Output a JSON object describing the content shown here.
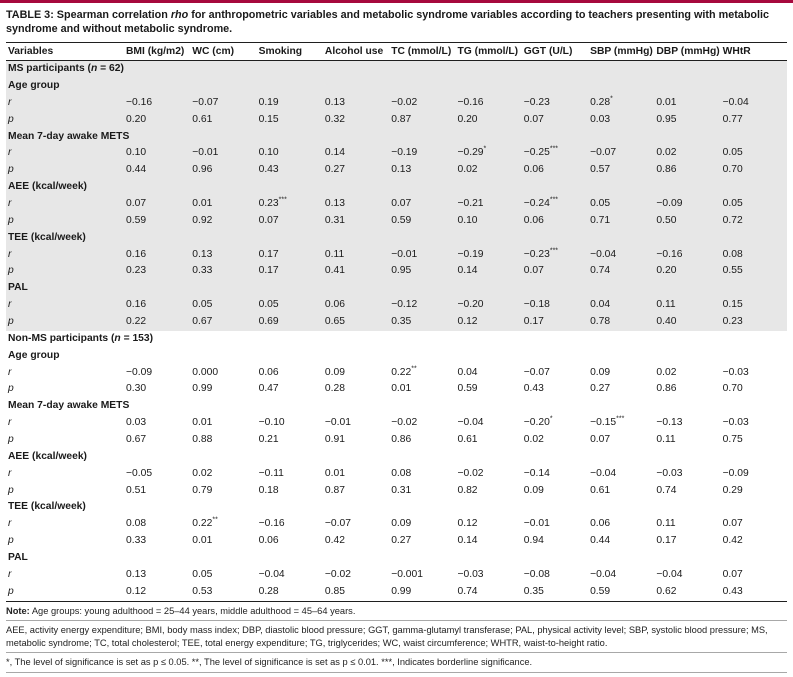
{
  "colors": {
    "accent": "#a6093d",
    "section_shade": "#e7e7e7"
  },
  "caption": {
    "prefix": "TABLE 3:",
    "before_italic": " Spearman correlation ",
    "italic": "rho",
    "after_italic": " for anthropometric variables and metabolic syndrome variables according to teachers presenting with metabolic syndrome and without metabolic syndrome."
  },
  "table": {
    "columns": [
      "Variables",
      "BMI (kg/m2)",
      "WC (cm)",
      "Smoking",
      "Alcohol use",
      "TC (mmol/L)",
      "TG (mmol/L)",
      "GGT (U/L)",
      "SBP (mmHg)",
      "DBP (mmHg)",
      "WHtR"
    ],
    "rows": [
      {
        "type": "section",
        "pre": "MS participants (",
        "sym": "n",
        "post": " = 62)",
        "shaded": true
      },
      {
        "type": "sub",
        "label": "Age group",
        "shaded": true
      },
      {
        "type": "data",
        "sym": "r",
        "shaded": true,
        "values": [
          "−0.16",
          "−0.07",
          "0.19",
          "0.13",
          "−0.02",
          "−0.16",
          "−0.23",
          "0.28*",
          "0.01",
          "−0.04"
        ]
      },
      {
        "type": "data",
        "sym": "p",
        "shaded": true,
        "values": [
          "0.20",
          "0.61",
          "0.15",
          "0.32",
          "0.87",
          "0.20",
          "0.07",
          "0.03",
          "0.95",
          "0.77"
        ]
      },
      {
        "type": "sub",
        "label": "Mean 7-day awake METS",
        "shaded": true
      },
      {
        "type": "data",
        "sym": "r",
        "shaded": true,
        "values": [
          "0.10",
          "−0.01",
          "0.10",
          "0.14",
          "−0.19",
          "−0.29*",
          "−0.25***",
          "−0.07",
          "0.02",
          "0.05"
        ]
      },
      {
        "type": "data",
        "sym": "p",
        "shaded": true,
        "values": [
          "0.44",
          "0.96",
          "0.43",
          "0.27",
          "0.13",
          "0.02",
          "0.06",
          "0.57",
          "0.86",
          "0.70"
        ]
      },
      {
        "type": "sub",
        "label": "AEE (kcal/week)",
        "shaded": true
      },
      {
        "type": "data",
        "sym": "r",
        "shaded": true,
        "values": [
          "0.07",
          "0.01",
          "0.23***",
          "0.13",
          "0.07",
          "−0.21",
          "−0.24***",
          "0.05",
          "−0.09",
          "0.05"
        ]
      },
      {
        "type": "data",
        "sym": "p",
        "shaded": true,
        "values": [
          "0.59",
          "0.92",
          "0.07",
          "0.31",
          "0.59",
          "0.10",
          "0.06",
          "0.71",
          "0.50",
          "0.72"
        ]
      },
      {
        "type": "sub",
        "label": "TEE (kcal/week)",
        "shaded": true
      },
      {
        "type": "data",
        "sym": "r",
        "shaded": true,
        "values": [
          "0.16",
          "0.13",
          "0.17",
          "0.11",
          "−0.01",
          "−0.19",
          "−0.23***",
          "−0.04",
          "−0.16",
          "0.08"
        ]
      },
      {
        "type": "data",
        "sym": "p",
        "shaded": true,
        "values": [
          "0.23",
          "0.33",
          "0.17",
          "0.41",
          "0.95",
          "0.14",
          "0.07",
          "0.74",
          "0.20",
          "0.55"
        ]
      },
      {
        "type": "sub",
        "label": "PAL",
        "shaded": true
      },
      {
        "type": "data",
        "sym": "r",
        "shaded": true,
        "values": [
          "0.16",
          "0.05",
          "0.05",
          "0.06",
          "−0.12",
          "−0.20",
          "−0.18",
          "0.04",
          "0.11",
          "0.15"
        ]
      },
      {
        "type": "data",
        "sym": "p",
        "shaded": true,
        "values": [
          "0.22",
          "0.67",
          "0.69",
          "0.65",
          "0.35",
          "0.12",
          "0.17",
          "0.78",
          "0.40",
          "0.23"
        ]
      },
      {
        "type": "section",
        "pre": "Non-MS participants (",
        "sym": "n",
        "post": " = 153)",
        "shaded": false
      },
      {
        "type": "sub",
        "label": "Age group",
        "shaded": false
      },
      {
        "type": "data",
        "sym": "r",
        "shaded": false,
        "values": [
          "−0.09",
          "0.000",
          "0.06",
          "0.09",
          "0.22**",
          "0.04",
          "−0.07",
          "0.09",
          "0.02",
          "−0.03"
        ]
      },
      {
        "type": "data",
        "sym": "p",
        "shaded": false,
        "values": [
          "0.30",
          "0.99",
          "0.47",
          "0.28",
          "0.01",
          "0.59",
          "0.43",
          "0.27",
          "0.86",
          "0.70"
        ]
      },
      {
        "type": "sub",
        "label": "Mean 7-day awake METS",
        "shaded": false
      },
      {
        "type": "data",
        "sym": "r",
        "shaded": false,
        "values": [
          "0.03",
          "0.01",
          "−0.10",
          "−0.01",
          "−0.02",
          "−0.04",
          "−0.20*",
          "−0.15***",
          "−0.13",
          "−0.03"
        ]
      },
      {
        "type": "data",
        "sym": "p",
        "shaded": false,
        "values": [
          "0.67",
          "0.88",
          "0.21",
          "0.91",
          "0.86",
          "0.61",
          "0.02",
          "0.07",
          "0.11",
          "0.75"
        ]
      },
      {
        "type": "sub",
        "label": "AEE (kcal/week)",
        "shaded": false
      },
      {
        "type": "data",
        "sym": "r",
        "shaded": false,
        "values": [
          "−0.05",
          "0.02",
          "−0.11",
          "0.01",
          "0.08",
          "−0.02",
          "−0.14",
          "−0.04",
          "−0.03",
          "−0.09"
        ]
      },
      {
        "type": "data",
        "sym": "p",
        "shaded": false,
        "values": [
          "0.51",
          "0.79",
          "0.18",
          "0.87",
          "0.31",
          "0.82",
          "0.09",
          "0.61",
          "0.74",
          "0.29"
        ]
      },
      {
        "type": "sub",
        "label": "TEE (kcal/week)",
        "shaded": false
      },
      {
        "type": "data",
        "sym": "r",
        "shaded": false,
        "values": [
          "0.08",
          "0.22**",
          "−0.16",
          "−0.07",
          "0.09",
          "0.12",
          "−0.01",
          "0.06",
          "0.11",
          "0.07"
        ]
      },
      {
        "type": "data",
        "sym": "p",
        "shaded": false,
        "values": [
          "0.33",
          "0.01",
          "0.06",
          "0.42",
          "0.27",
          "0.14",
          "0.94",
          "0.44",
          "0.17",
          "0.42"
        ]
      },
      {
        "type": "sub",
        "label": "PAL",
        "shaded": false
      },
      {
        "type": "data",
        "sym": "r",
        "shaded": false,
        "values": [
          "0.13",
          "0.05",
          "−0.04",
          "−0.02",
          "−0.001",
          "−0.03",
          "−0.08",
          "−0.04",
          "−0.04",
          "0.07"
        ]
      },
      {
        "type": "data",
        "sym": "p",
        "shaded": false,
        "values": [
          "0.12",
          "0.53",
          "0.28",
          "0.85",
          "0.99",
          "0.74",
          "0.35",
          "0.59",
          "0.62",
          "0.43"
        ]
      }
    ]
  },
  "notes": [
    {
      "bold": "Note:",
      "text": " Age groups: young adulthood = 25–44 years, middle adulthood = 45–64 years."
    },
    {
      "bold": "",
      "text": "AEE, activity energy expenditure; BMI, body mass index; DBP, diastolic blood pressure; GGT, gamma-glutamyl transferase; PAL, physical activity level; SBP, systolic blood pressure; MS, metabolic syndrome; TC, total cholesterol; TEE, total energy expenditure; TG, triglycerides; WC, waist circumference; WHTR, waist-to-height ratio."
    },
    {
      "bold": "",
      "text": "*, The level of significance is set as p ≤ 0.05. **, The level of significance is set as p ≤ 0.01. ***, Indicates borderline significance."
    }
  ]
}
